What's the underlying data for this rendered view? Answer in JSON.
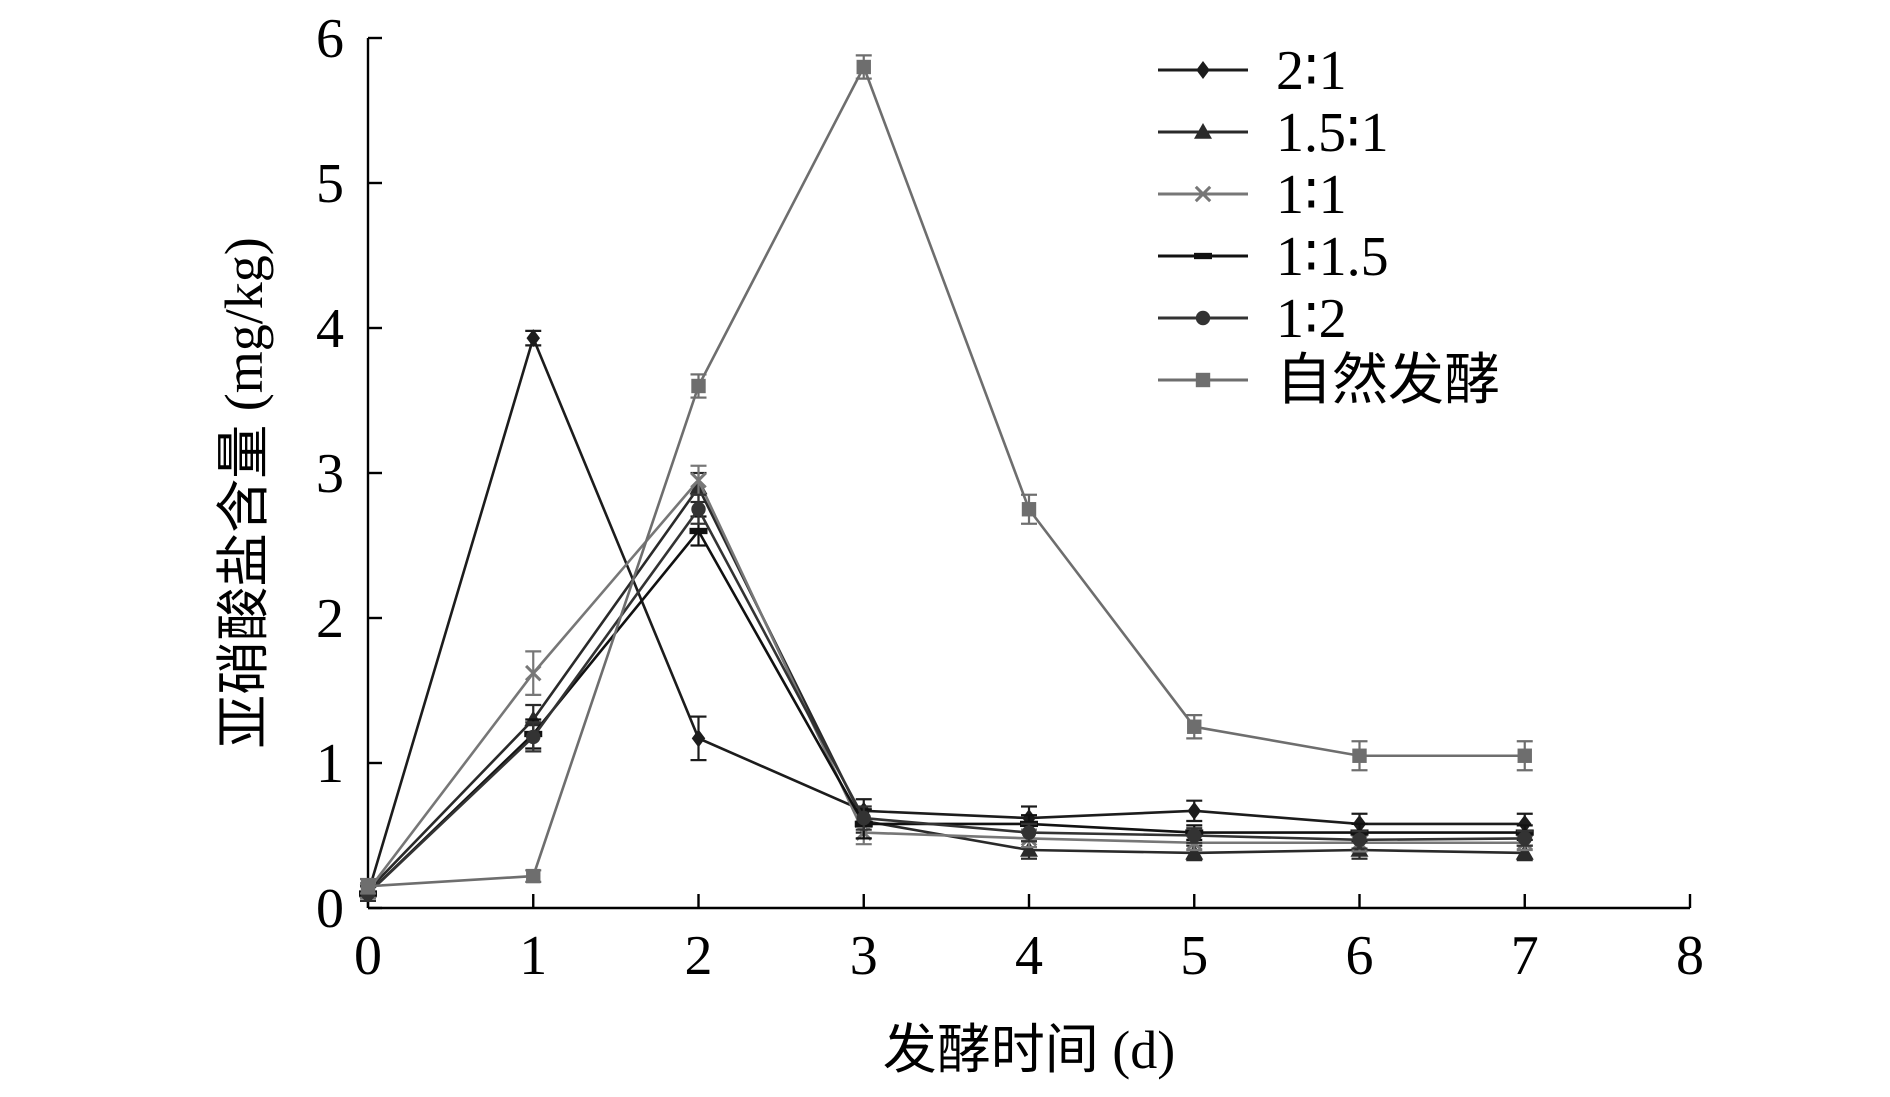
{
  "chart_data": {
    "type": "line",
    "xlabel": "发酵时间 (d)",
    "ylabel": "亚硝酸盐含量 (mg/kg)",
    "xlim": [
      0,
      8
    ],
    "ylim": [
      0,
      6
    ],
    "xticks": [
      "0",
      "1",
      "2",
      "3",
      "4",
      "5",
      "6",
      "7",
      "8"
    ],
    "yticks": [
      "0",
      "1",
      "2",
      "3",
      "4",
      "5",
      "6"
    ],
    "grid": false,
    "legend_position": "top-right",
    "x": [
      0,
      1,
      2,
      3,
      4,
      5,
      6,
      7
    ],
    "series": [
      {
        "name": "2∶1",
        "marker": "diamond",
        "color": "#1c1c1c",
        "values": [
          0.1,
          3.93,
          1.17,
          0.67,
          0.62,
          0.67,
          0.58,
          0.58
        ],
        "errors": [
          0.05,
          0.05,
          0.15,
          0.08,
          0.08,
          0.07,
          0.07,
          0.07
        ]
      },
      {
        "name": "1.5∶1",
        "marker": "triangle",
        "color": "#2a2a2a",
        "values": [
          0.12,
          1.3,
          2.9,
          0.6,
          0.4,
          0.38,
          0.4,
          0.38
        ],
        "errors": [
          0.05,
          0.1,
          0.1,
          0.08,
          0.06,
          0.05,
          0.06,
          0.05
        ]
      },
      {
        "name": "1∶1",
        "marker": "x",
        "color": "#777777",
        "values": [
          0.12,
          1.62,
          2.95,
          0.52,
          0.48,
          0.45,
          0.45,
          0.45
        ],
        "errors": [
          0.05,
          0.15,
          0.1,
          0.08,
          0.06,
          0.05,
          0.06,
          0.05
        ]
      },
      {
        "name": "1∶1.5",
        "marker": "dash",
        "color": "#111111",
        "values": [
          0.1,
          1.2,
          2.6,
          0.58,
          0.58,
          0.52,
          0.52,
          0.52
        ],
        "errors": [
          0.05,
          0.1,
          0.1,
          0.1,
          0.06,
          0.05,
          0.06,
          0.05
        ]
      },
      {
        "name": "1∶2",
        "marker": "circle",
        "color": "#333333",
        "values": [
          0.1,
          1.18,
          2.75,
          0.62,
          0.52,
          0.5,
          0.47,
          0.48
        ],
        "errors": [
          0.05,
          0.1,
          0.1,
          0.08,
          0.06,
          0.05,
          0.06,
          0.05
        ]
      },
      {
        "name": "自然发酵",
        "marker": "square",
        "color": "#6e6e6e",
        "values": [
          0.15,
          0.22,
          3.6,
          5.8,
          2.75,
          1.25,
          1.05,
          1.05
        ],
        "errors": [
          0.05,
          0.04,
          0.08,
          0.08,
          0.1,
          0.08,
          0.1,
          0.1
        ]
      }
    ]
  }
}
